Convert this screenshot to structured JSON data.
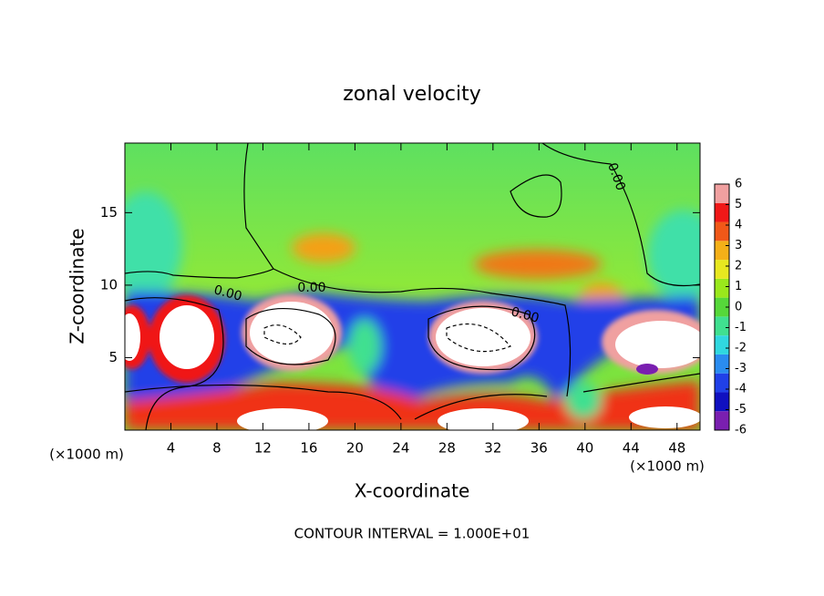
{
  "chart_data": {
    "type": "contour",
    "title": "zonal velocity",
    "xlabel": "X-coordinate",
    "ylabel": "Z-coordinate",
    "xunit": "(×1000 m)",
    "yunit": "(×1000 m)",
    "xlim": [
      0,
      50
    ],
    "xticks": [
      4,
      8,
      12,
      16,
      20,
      24,
      28,
      32,
      36,
      40,
      44,
      48
    ],
    "ylim": [
      0,
      19.8
    ],
    "yticks": [
      5,
      10,
      15
    ],
    "colorbar": {
      "lim": [
        -6,
        6
      ],
      "ticks": [
        -6,
        -5,
        -4,
        -3,
        -2,
        -1,
        0,
        1,
        2,
        3,
        4,
        5,
        6
      ],
      "colors": [
        "#7a1fb0",
        "#1010c0",
        "#2040e8",
        "#2a8cf0",
        "#30d8e0",
        "#40e090",
        "#56d83a",
        "#9ae81c",
        "#e8e820",
        "#f4b018",
        "#f05818",
        "#f01818",
        "#f0a0a0"
      ]
    },
    "contour_labels": [
      {
        "value": 0,
        "label": "0.00"
      },
      {
        "value": 0,
        "label": "0.00"
      },
      {
        "value": 0,
        "label": "0.00"
      },
      {
        "value": 0,
        "label": "0.00"
      }
    ],
    "footnote": "CONTOUR INTERVAL = 1.000E+01"
  }
}
